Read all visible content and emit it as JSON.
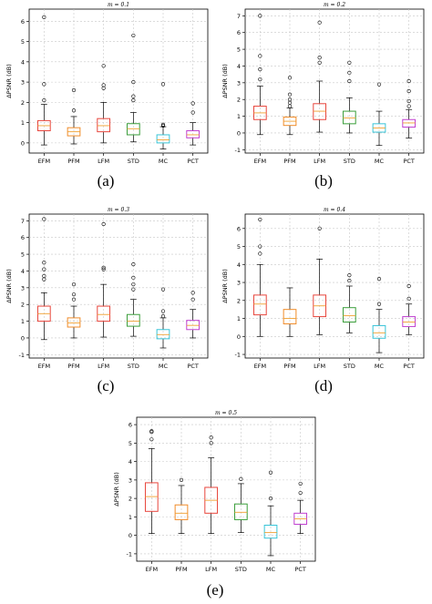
{
  "chart_data": [
    {
      "type": "box",
      "title": "m = 0.1",
      "ylabel": "ΔPSNR (dB)",
      "panel_label": "(a)",
      "ylim": [
        -0.5,
        6.6
      ],
      "yticks": [
        0,
        1,
        2,
        3,
        4,
        5,
        6
      ],
      "grid": true,
      "categories": [
        "EFM",
        "PFM",
        "LFM",
        "STD",
        "MC",
        "PCT"
      ],
      "boxes": [
        {
          "name": "EFM",
          "color": "#e8453c",
          "whislo": -0.1,
          "q1": 0.6,
          "med": 0.85,
          "q3": 1.1,
          "whishi": 1.9,
          "fliers": [
            2.1,
            2.9,
            6.2
          ]
        },
        {
          "name": "PFM",
          "color": "#f08c2a",
          "whislo": -0.05,
          "q1": 0.35,
          "med": 0.55,
          "q3": 0.75,
          "whishi": 1.3,
          "fliers": [
            1.6,
            2.6
          ]
        },
        {
          "name": "LFM",
          "color": "#e8453c",
          "whislo": 0.0,
          "q1": 0.55,
          "med": 0.85,
          "q3": 1.2,
          "whishi": 2.0,
          "fliers": [
            2.7,
            2.85,
            3.8
          ]
        },
        {
          "name": "STD",
          "color": "#3a9e3a",
          "whislo": 0.05,
          "q1": 0.4,
          "med": 0.7,
          "q3": 0.95,
          "whishi": 1.5,
          "fliers": [
            2.1,
            2.3,
            3.0,
            5.3
          ]
        },
        {
          "name": "MC",
          "color": "#38c4d8",
          "whislo": -0.3,
          "q1": 0.0,
          "med": 0.15,
          "q3": 0.4,
          "whishi": 0.8,
          "fliers": [
            0.85,
            0.9,
            2.9
          ]
        },
        {
          "name": "PCT",
          "color": "#c040d0",
          "whislo": -0.1,
          "q1": 0.25,
          "med": 0.4,
          "q3": 0.6,
          "whishi": 1.0,
          "fliers": [
            1.5,
            1.95
          ]
        }
      ]
    },
    {
      "type": "box",
      "title": "m = 0.2",
      "ylabel": "ΔPSNR (dB)",
      "panel_label": "(b)",
      "ylim": [
        -1.2,
        7.4
      ],
      "yticks": [
        -1,
        0,
        1,
        2,
        3,
        4,
        5,
        6,
        7
      ],
      "grid": true,
      "categories": [
        "EFM",
        "PFM",
        "LFM",
        "STD",
        "MC",
        "PCT"
      ],
      "boxes": [
        {
          "name": "EFM",
          "color": "#e8453c",
          "whislo": -0.1,
          "q1": 0.8,
          "med": 1.2,
          "q3": 1.6,
          "whishi": 2.8,
          "fliers": [
            3.2,
            3.8,
            4.6,
            7.0
          ]
        },
        {
          "name": "PFM",
          "color": "#f08c2a",
          "whislo": -0.1,
          "q1": 0.45,
          "med": 0.7,
          "q3": 0.95,
          "whishi": 1.5,
          "fliers": [
            1.6,
            1.8,
            2.0,
            2.3,
            3.3
          ]
        },
        {
          "name": "LFM",
          "color": "#e8453c",
          "whislo": 0.05,
          "q1": 0.8,
          "med": 1.3,
          "q3": 1.75,
          "whishi": 3.1,
          "fliers": [
            4.2,
            4.5,
            6.6
          ]
        },
        {
          "name": "STD",
          "color": "#3a9e3a",
          "whislo": 0.0,
          "q1": 0.55,
          "med": 0.9,
          "q3": 1.3,
          "whishi": 2.1,
          "fliers": [
            3.1,
            3.6,
            4.2
          ]
        },
        {
          "name": "MC",
          "color": "#38c4d8",
          "whislo": -0.75,
          "q1": 0.05,
          "med": 0.3,
          "q3": 0.55,
          "whishi": 1.3,
          "fliers": [
            2.9
          ]
        },
        {
          "name": "PCT",
          "color": "#c040d0",
          "whislo": -0.3,
          "q1": 0.35,
          "med": 0.6,
          "q3": 0.8,
          "whishi": 1.4,
          "fliers": [
            1.6,
            1.9,
            2.5,
            3.1
          ]
        }
      ]
    },
    {
      "type": "box",
      "title": "m = 0.3",
      "ylabel": "ΔPSNR (dB)",
      "panel_label": "(c)",
      "ylim": [
        -1.2,
        7.4
      ],
      "yticks": [
        -1,
        0,
        1,
        2,
        3,
        4,
        5,
        6,
        7
      ],
      "grid": true,
      "categories": [
        "EFM",
        "PFM",
        "LFM",
        "STD",
        "MC",
        "PCT"
      ],
      "boxes": [
        {
          "name": "EFM",
          "color": "#e8453c",
          "whislo": -0.1,
          "q1": 1.0,
          "med": 1.45,
          "q3": 1.9,
          "whishi": 2.7,
          "fliers": [
            3.5,
            3.7,
            4.1,
            4.5,
            7.1
          ]
        },
        {
          "name": "PFM",
          "color": "#f08c2a",
          "whislo": 0.0,
          "q1": 0.65,
          "med": 0.9,
          "q3": 1.2,
          "whishi": 1.9,
          "fliers": [
            2.3,
            2.6,
            3.2
          ]
        },
        {
          "name": "LFM",
          "color": "#e8453c",
          "whislo": 0.05,
          "q1": 1.0,
          "med": 1.4,
          "q3": 1.9,
          "whishi": 3.2,
          "fliers": [
            4.1,
            4.2,
            6.8
          ]
        },
        {
          "name": "STD",
          "color": "#3a9e3a",
          "whislo": 0.1,
          "q1": 0.7,
          "med": 1.0,
          "q3": 1.4,
          "whishi": 2.3,
          "fliers": [
            2.9,
            3.2,
            3.6,
            4.4
          ]
        },
        {
          "name": "MC",
          "color": "#38c4d8",
          "whislo": -0.6,
          "q1": -0.05,
          "med": 0.2,
          "q3": 0.5,
          "whishi": 1.2,
          "fliers": [
            1.3,
            1.6,
            2.9
          ]
        },
        {
          "name": "PCT",
          "color": "#c040d0",
          "whislo": 0.0,
          "q1": 0.5,
          "med": 0.75,
          "q3": 1.05,
          "whishi": 1.7,
          "fliers": [
            2.3,
            2.7
          ]
        }
      ]
    },
    {
      "type": "box",
      "title": "m = 0.4",
      "ylabel": "ΔPSNR (dB)",
      "panel_label": "(d)",
      "ylim": [
        -1.2,
        6.8
      ],
      "yticks": [
        -1,
        0,
        1,
        2,
        3,
        4,
        5,
        6
      ],
      "grid": true,
      "categories": [
        "EFM",
        "PFM",
        "LFM",
        "STD",
        "MC",
        "PCT"
      ],
      "boxes": [
        {
          "name": "EFM",
          "color": "#e8453c",
          "whislo": 0.0,
          "q1": 1.2,
          "med": 1.8,
          "q3": 2.3,
          "whishi": 4.0,
          "fliers": [
            4.6,
            5.0,
            6.5
          ]
        },
        {
          "name": "PFM",
          "color": "#f08c2a",
          "whislo": 0.0,
          "q1": 0.7,
          "med": 1.0,
          "q3": 1.5,
          "whishi": 2.7,
          "fliers": []
        },
        {
          "name": "LFM",
          "color": "#e8453c",
          "whislo": 0.1,
          "q1": 1.1,
          "med": 1.7,
          "q3": 2.3,
          "whishi": 4.3,
          "fliers": [
            6.0
          ]
        },
        {
          "name": "STD",
          "color": "#3a9e3a",
          "whislo": 0.2,
          "q1": 0.8,
          "med": 1.15,
          "q3": 1.6,
          "whishi": 2.8,
          "fliers": [
            3.1,
            3.4
          ]
        },
        {
          "name": "MC",
          "color": "#38c4d8",
          "whislo": -0.9,
          "q1": -0.1,
          "med": 0.2,
          "q3": 0.6,
          "whishi": 1.5,
          "fliers": [
            1.8,
            3.2
          ]
        },
        {
          "name": "PCT",
          "color": "#c040d0",
          "whislo": 0.1,
          "q1": 0.55,
          "med": 0.8,
          "q3": 1.1,
          "whishi": 1.8,
          "fliers": [
            2.1,
            2.8
          ]
        }
      ]
    },
    {
      "type": "box",
      "title": "m = 0.5",
      "ylabel": "ΔPSNR (dB)",
      "panel_label": "(e)",
      "ylim": [
        -1.4,
        6.4
      ],
      "yticks": [
        -1,
        0,
        1,
        2,
        3,
        4,
        5,
        6
      ],
      "grid": true,
      "categories": [
        "EFM",
        "PFM",
        "LFM",
        "STD",
        "MC",
        "PCT"
      ],
      "boxes": [
        {
          "name": "EFM",
          "color": "#e8453c",
          "whislo": 0.1,
          "q1": 1.3,
          "med": 2.1,
          "q3": 2.85,
          "whishi": 4.7,
          "fliers": [
            5.2,
            5.6,
            5.65
          ]
        },
        {
          "name": "PFM",
          "color": "#f08c2a",
          "whislo": 0.1,
          "q1": 0.85,
          "med": 1.2,
          "q3": 1.65,
          "whishi": 2.7,
          "fliers": [
            3.0
          ]
        },
        {
          "name": "LFM",
          "color": "#e8453c",
          "whislo": 0.1,
          "q1": 1.2,
          "med": 1.9,
          "q3": 2.6,
          "whishi": 4.2,
          "fliers": [
            5.0,
            5.3
          ]
        },
        {
          "name": "STD",
          "color": "#3a9e3a",
          "whislo": 0.15,
          "q1": 0.85,
          "med": 1.25,
          "q3": 1.7,
          "whishi": 2.8,
          "fliers": [
            3.05
          ]
        },
        {
          "name": "MC",
          "color": "#38c4d8",
          "whislo": -1.1,
          "q1": -0.15,
          "med": 0.15,
          "q3": 0.55,
          "whishi": 1.6,
          "fliers": [
            2.0,
            3.4
          ]
        },
        {
          "name": "PCT",
          "color": "#c040d0",
          "whislo": 0.1,
          "q1": 0.6,
          "med": 0.9,
          "q3": 1.2,
          "whishi": 1.9,
          "fliers": [
            2.3,
            2.8
          ]
        }
      ]
    }
  ]
}
